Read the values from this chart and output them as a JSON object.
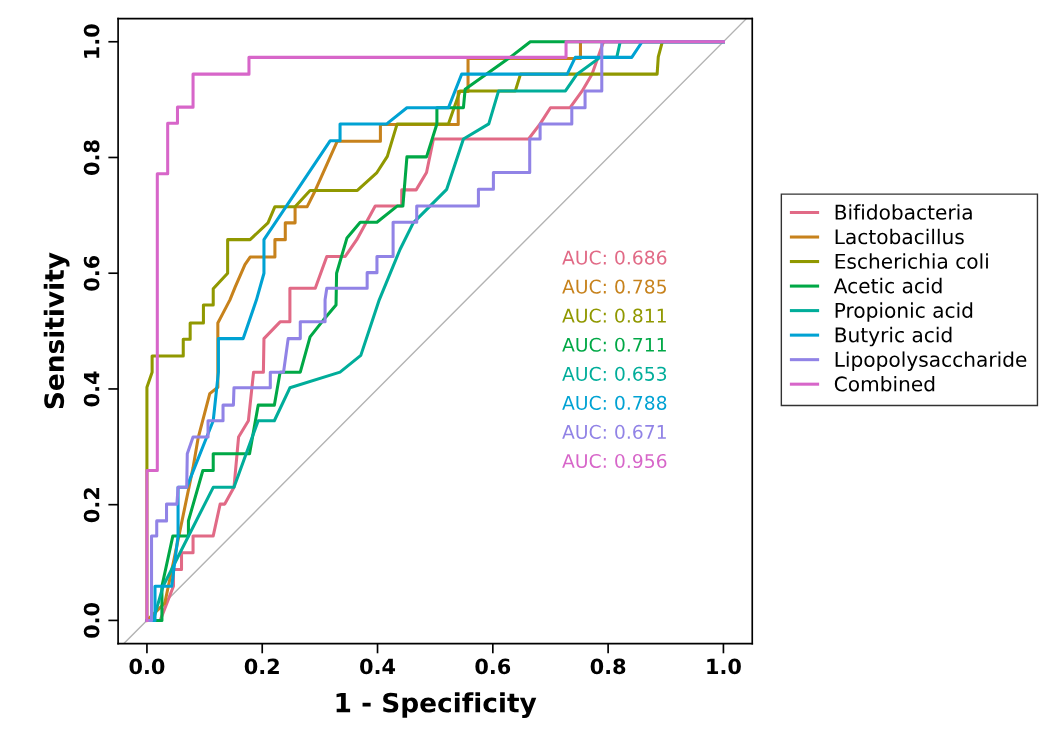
{
  "chart_data": {
    "type": "line",
    "xlabel": "1 - Specificity",
    "ylabel": "Sensitivity",
    "xlim": [
      -0.05,
      1.05
    ],
    "ylim": [
      -0.04,
      1.04
    ],
    "xticks": [
      {
        "value": 0,
        "label": "0.0"
      },
      {
        "value": 0.2,
        "label": "0.2"
      },
      {
        "value": 0.4,
        "label": "0.4"
      },
      {
        "value": 0.6,
        "label": "0.6"
      },
      {
        "value": 0.8,
        "label": "0.8"
      },
      {
        "value": 1,
        "label": "1.0"
      }
    ],
    "yticks": [
      {
        "value": 0,
        "label": "0.0"
      },
      {
        "value": 0.2,
        "label": "0.2"
      },
      {
        "value": 0.4,
        "label": "0.4"
      },
      {
        "value": 0.6,
        "label": "0.6"
      },
      {
        "value": 0.8,
        "label": "0.8"
      },
      {
        "value": 1,
        "label": "1.0"
      }
    ],
    "grid": false,
    "legend": "right",
    "marker": "none",
    "line_style": "solid",
    "annotations": [
      "AUC: 0.686",
      "AUC: 0.785",
      "AUC: 0.811",
      "AUC: 0.711",
      "AUC: 0.653",
      "AUC: 0.788",
      "AUC: 0.671",
      "AUC: 0.956"
    ],
    "series": [
      {
        "name": "Bifidobacteria",
        "color": "#E16A86",
        "x": [
          0,
          0.023,
          0.046,
          0.046,
          0.06,
          0.06,
          0.08,
          0.08,
          0.115,
          0.127,
          0.135,
          0.151,
          0.159,
          0.176,
          0.185,
          0.202,
          0.203,
          0.231,
          0.248,
          0.248,
          0.292,
          0.312,
          0.344,
          0.364,
          0.396,
          0.442,
          0.442,
          0.467,
          0.485,
          0.497,
          0.662,
          0.682,
          0.7,
          0.734,
          0.755,
          0.772,
          0.792,
          1
        ],
        "values": [
          0,
          0,
          0.059,
          0.088,
          0.088,
          0.117,
          0.117,
          0.146,
          0.146,
          0.201,
          0.201,
          0.23,
          0.317,
          0.345,
          0.429,
          0.429,
          0.487,
          0.516,
          0.516,
          0.574,
          0.574,
          0.629,
          0.629,
          0.658,
          0.716,
          0.716,
          0.744,
          0.744,
          0.774,
          0.832,
          0.832,
          0.858,
          0.886,
          0.886,
          0.915,
          0.944,
          1,
          1
        ]
      },
      {
        "name": "Lactobacillus",
        "color": "#C7821C",
        "x": [
          0,
          0.031,
          0.049,
          0.08,
          0.089,
          0.109,
          0.123,
          0.123,
          0.132,
          0.144,
          0.153,
          0.17,
          0.179,
          0.222,
          0.222,
          0.24,
          0.24,
          0.257,
          0.257,
          0.278,
          0.292,
          0.33,
          0.405,
          0.405,
          0.54,
          0.54,
          0.557,
          0.557,
          0.752,
          0.752
        ],
        "values": [
          0,
          0.03,
          0.115,
          0.264,
          0.316,
          0.392,
          0.403,
          0.514,
          0.531,
          0.554,
          0.576,
          0.615,
          0.628,
          0.628,
          0.658,
          0.658,
          0.687,
          0.687,
          0.715,
          0.715,
          0.743,
          0.828,
          0.828,
          0.857,
          0.857,
          0.914,
          0.914,
          0.971,
          0.971,
          1
        ]
      },
      {
        "name": "Escherichia coli",
        "color": "#909800",
        "x": [
          0,
          0,
          0,
          0.009,
          0.009,
          0.063,
          0.063,
          0.075,
          0.075,
          0.087,
          0.098,
          0.098,
          0.115,
          0.115,
          0.14,
          0.14,
          0.179,
          0.21,
          0.222,
          0.257,
          0.283,
          0.365,
          0.399,
          0.417,
          0.434,
          0.523,
          0.543,
          0.639,
          0.648,
          0.885,
          0.887,
          0.894
        ],
        "values": [
          0,
          0.262,
          0.403,
          0.429,
          0.457,
          0.457,
          0.486,
          0.486,
          0.514,
          0.514,
          0.514,
          0.545,
          0.545,
          0.573,
          0.6,
          0.658,
          0.658,
          0.687,
          0.715,
          0.715,
          0.743,
          0.743,
          0.774,
          0.802,
          0.858,
          0.858,
          0.915,
          0.915,
          0.944,
          0.944,
          0.974,
          1
        ]
      },
      {
        "name": "Acetic acid",
        "color": "#00A846",
        "x": [
          0,
          0.026,
          0.026,
          0.045,
          0.072,
          0.072,
          0.097,
          0.115,
          0.115,
          0.178,
          0.193,
          0.221,
          0.231,
          0.266,
          0.283,
          0.306,
          0.328,
          0.329,
          0.347,
          0.37,
          0.399,
          0.434,
          0.444,
          0.451,
          0.485,
          0.503,
          0.503,
          0.549,
          0.552,
          0.63,
          0.665,
          1
        ],
        "values": [
          0,
          0,
          0.059,
          0.146,
          0.146,
          0.172,
          0.259,
          0.259,
          0.288,
          0.288,
          0.372,
          0.372,
          0.429,
          0.429,
          0.49,
          0.519,
          0.545,
          0.6,
          0.661,
          0.688,
          0.688,
          0.716,
          0.716,
          0.801,
          0.801,
          0.858,
          0.886,
          0.886,
          0.918,
          0.973,
          1,
          1
        ]
      },
      {
        "name": "Propionic acid",
        "color": "#00AD9A",
        "x": [
          0,
          0.011,
          0.028,
          0.115,
          0.151,
          0.193,
          0.221,
          0.248,
          0.335,
          0.371,
          0.403,
          0.439,
          0.462,
          0.52,
          0.549,
          0.593,
          0.61,
          0.726,
          0.746,
          0.786,
          0.815,
          0.821,
          1
        ],
        "values": [
          0,
          0,
          0.059,
          0.23,
          0.23,
          0.345,
          0.345,
          0.402,
          0.429,
          0.458,
          0.554,
          0.641,
          0.687,
          0.745,
          0.832,
          0.858,
          0.915,
          0.915,
          0.944,
          0.973,
          0.973,
          1,
          1
        ]
      },
      {
        "name": "Butyric acid",
        "color": "#00A2D3",
        "x": [
          0,
          0.014,
          0.014,
          0.043,
          0.054,
          0.054,
          0.069,
          0.115,
          0.124,
          0.124,
          0.167,
          0.19,
          0.203,
          0.203,
          0.318,
          0.335,
          0.335,
          0.416,
          0.451,
          0.523,
          0.546,
          0.729,
          0.743,
          0.841,
          0.859,
          1
        ],
        "values": [
          0,
          0,
          0.059,
          0.059,
          0.146,
          0.23,
          0.23,
          0.345,
          0.429,
          0.487,
          0.487,
          0.554,
          0.6,
          0.658,
          0.829,
          0.829,
          0.858,
          0.858,
          0.886,
          0.886,
          0.944,
          0.944,
          0.973,
          0.973,
          1,
          1
        ]
      },
      {
        "name": "Lipopolysaccharide",
        "color": "#9183E6",
        "x": [
          0,
          0.008,
          0.008,
          0.017,
          0.017,
          0.034,
          0.034,
          0.052,
          0.054,
          0.069,
          0.07,
          0.08,
          0.106,
          0.106,
          0.132,
          0.132,
          0.15,
          0.151,
          0.214,
          0.214,
          0.237,
          0.245,
          0.266,
          0.266,
          0.309,
          0.309,
          0.312,
          0.382,
          0.382,
          0.399,
          0.399,
          0.427,
          0.427,
          0.468,
          0.468,
          0.575,
          0.575,
          0.601,
          0.601,
          0.664,
          0.664,
          0.682,
          0.682,
          0.737,
          0.737,
          0.76,
          0.76,
          0.789,
          0.789,
          1
        ],
        "values": [
          0,
          0,
          0.146,
          0.146,
          0.172,
          0.172,
          0.201,
          0.201,
          0.23,
          0.23,
          0.288,
          0.317,
          0.317,
          0.345,
          0.345,
          0.372,
          0.372,
          0.402,
          0.402,
          0.429,
          0.429,
          0.487,
          0.487,
          0.516,
          0.516,
          0.554,
          0.574,
          0.574,
          0.601,
          0.601,
          0.629,
          0.629,
          0.688,
          0.688,
          0.716,
          0.716,
          0.745,
          0.745,
          0.774,
          0.774,
          0.832,
          0.832,
          0.858,
          0.858,
          0.886,
          0.886,
          0.915,
          0.915,
          1,
          1
        ]
      },
      {
        "name": "Combined",
        "color": "#D766C9",
        "x": [
          0,
          0,
          0.018,
          0.018,
          0.036,
          0.036,
          0.053,
          0.053,
          0.08,
          0.08,
          0.177,
          0.177,
          0.727,
          0.727,
          1
        ],
        "values": [
          0,
          0.259,
          0.259,
          0.772,
          0.772,
          0.859,
          0.859,
          0.887,
          0.887,
          0.944,
          0.944,
          0.973,
          0.973,
          1,
          1
        ]
      },
      {
        "color": "#b3b3b3",
        "x": [
          -0.04,
          1.04
        ],
        "values": [
          -0.04,
          1.04
        ]
      }
    ]
  }
}
